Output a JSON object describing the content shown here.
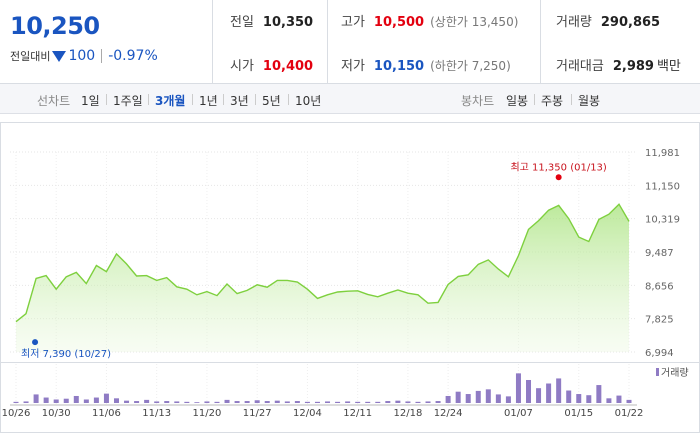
{
  "price": {
    "current": "10,250",
    "change_label": "전일대비",
    "change_value": "100",
    "change_pct": "-0.97%"
  },
  "stats": {
    "prev_label": "전일",
    "prev_value": "10,350",
    "open_label": "시가",
    "open_value": "10,400",
    "high_label": "고가",
    "high_value": "10,500",
    "upper_limit": "(상한가 13,450)",
    "low_label": "저가",
    "low_value": "10,150",
    "lower_limit": "(하한가 7,250)",
    "volume_label": "거래량",
    "volume_value": "290,865",
    "amount_label": "거래대금",
    "amount_value": "2,989",
    "amount_unit": "백만"
  },
  "tabs": {
    "line_label": "선차트",
    "line_periods": [
      "1일",
      "1주일",
      "3개월",
      "1년",
      "3년",
      "5년",
      "10년"
    ],
    "active_period": "3개월",
    "candle_label": "봉차트",
    "candle_periods": [
      "일봉",
      "주봉",
      "월봉"
    ]
  },
  "colors": {
    "accent_blue": "#1a55c0",
    "up_red": "#e3000f",
    "line_green": "#7ed03e",
    "volume_purple": "#8f7bc4"
  },
  "chart_data": {
    "type": "area",
    "x": [
      "10/26",
      "10/27",
      "10/28",
      "10/29",
      "10/30",
      "10/31",
      "11/03",
      "11/04",
      "11/05",
      "11/06",
      "11/07",
      "11/10",
      "11/11",
      "11/12",
      "11/13",
      "11/14",
      "11/17",
      "11/18",
      "11/19",
      "11/20",
      "11/21",
      "11/24",
      "11/25",
      "11/26",
      "11/27",
      "11/28",
      "12/01",
      "12/02",
      "12/03",
      "12/04",
      "12/05",
      "12/08",
      "12/09",
      "12/10",
      "12/11",
      "12/12",
      "12/15",
      "12/16",
      "12/17",
      "12/18",
      "12/19",
      "12/22",
      "12/23",
      "12/24",
      "12/26",
      "12/29",
      "12/30",
      "01/02",
      "01/05",
      "01/06",
      "01/07",
      "01/08",
      "01/09",
      "01/12",
      "01/13",
      "01/14",
      "01/15",
      "01/16",
      "01/19",
      "01/20",
      "01/21",
      "01/22"
    ],
    "values": [
      7750,
      7950,
      8830,
      8900,
      8560,
      8870,
      8980,
      8700,
      9150,
      9000,
      9440,
      9190,
      8890,
      8900,
      8780,
      8850,
      8620,
      8560,
      8420,
      8500,
      8400,
      8690,
      8450,
      8530,
      8670,
      8610,
      8780,
      8780,
      8740,
      8560,
      8330,
      8420,
      8490,
      8510,
      8520,
      8430,
      8370,
      8460,
      8540,
      8460,
      8420,
      8210,
      8230,
      8680,
      8880,
      8920,
      9180,
      9290,
      9060,
      8870,
      9400,
      10050,
      10270,
      10530,
      10650,
      10320,
      9860,
      9750,
      10300,
      10430,
      10680,
      10250
    ],
    "y_ticks": [
      "11,981",
      "11,150",
      "10,319",
      "9,487",
      "8,656",
      "7,825",
      "6,994"
    ],
    "y_range": [
      6994,
      11981
    ],
    "x_tick_labels": [
      "10/26",
      "10/30",
      "11/06",
      "11/13",
      "11/20",
      "11/27",
      "12/04",
      "12/11",
      "12/18",
      "12/24",
      "01/07",
      "01/15",
      "01/22"
    ],
    "high_annotation": "최고 11,350 (01/13)",
    "low_annotation": "최저 7,390 (10/27)",
    "volume_legend": "거래량",
    "volume": [
      0.03,
      0.04,
      0.22,
      0.14,
      0.09,
      0.11,
      0.18,
      0.09,
      0.14,
      0.24,
      0.12,
      0.06,
      0.05,
      0.08,
      0.04,
      0.05,
      0.04,
      0.03,
      0.02,
      0.04,
      0.03,
      0.08,
      0.05,
      0.05,
      0.07,
      0.05,
      0.06,
      0.04,
      0.05,
      0.03,
      0.03,
      0.04,
      0.03,
      0.04,
      0.03,
      0.03,
      0.03,
      0.05,
      0.06,
      0.04,
      0.03,
      0.04,
      0.05,
      0.18,
      0.29,
      0.23,
      0.31,
      0.35,
      0.22,
      0.17,
      0.76,
      0.59,
      0.38,
      0.5,
      0.63,
      0.32,
      0.23,
      0.2,
      0.46,
      0.12,
      0.19,
      0.08
    ]
  }
}
